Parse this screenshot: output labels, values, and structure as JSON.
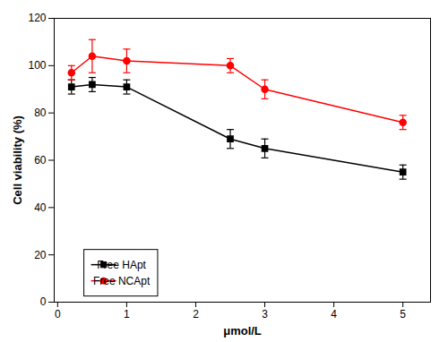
{
  "chart_data": {
    "type": "line",
    "xlabel": "μmol/L",
    "ylabel": "Cell viability (%)",
    "x": [
      0.2,
      0.5,
      1.0,
      2.5,
      3.0,
      5.0
    ],
    "series": [
      {
        "name": "Free HApt",
        "color": "#000000",
        "marker": "square",
        "line_style": "solid",
        "values": [
          91,
          92,
          91,
          69,
          65,
          55
        ],
        "errors": [
          3,
          3,
          3,
          4,
          4,
          3
        ]
      },
      {
        "name": "Free NCApt",
        "color": "#ff0000",
        "marker": "circle",
        "line_style": "solid",
        "values": [
          97,
          104,
          102,
          100,
          90,
          76
        ],
        "errors": [
          3,
          7,
          5,
          3,
          4,
          3
        ]
      }
    ],
    "xlim": [
      -0.05,
      5.4
    ],
    "ylim": [
      0,
      120
    ],
    "xticks": [
      0,
      1,
      2,
      3,
      4,
      5
    ],
    "yticks": [
      0,
      20,
      40,
      60,
      80,
      100,
      120
    ],
    "grid": false,
    "legend": "lower left"
  }
}
